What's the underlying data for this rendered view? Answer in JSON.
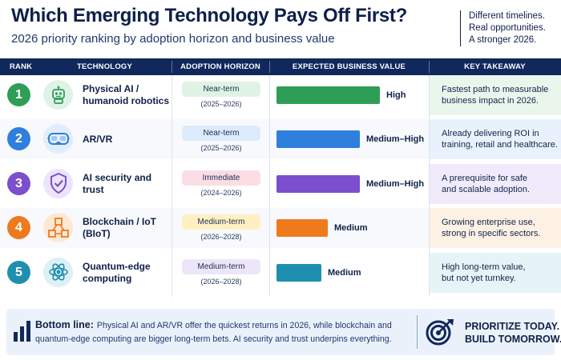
{
  "header": {
    "title": "Which Emerging Technology Pays Off First?",
    "subtitle": "2026 priority ranking by adoption horizon and business value",
    "tagline": [
      "Different timelines.",
      "Real opportunities.",
      "A stronger 2026."
    ]
  },
  "columns": {
    "rank": "RANK",
    "technology": "TECHNOLOGY",
    "horizon": "ADOPTION HORIZON",
    "value": "EXPECTED BUSINESS VALUE",
    "takeaway": "KEY TAKEAWAY"
  },
  "rows": [
    {
      "rank": "1",
      "technology": "Physical AI / humanoid robotics",
      "icon": "robot-icon",
      "horizon": "Near-term",
      "years": "(2025–2026)",
      "value_label": "High",
      "value_level": 0.92,
      "takeaway": "Fastest path to measurable\nbusiness impact in 2026.",
      "color": "#2e9e57",
      "pill_color": "#dff3e4",
      "takeaway_bg": "#eaf6ec",
      "icon_bg": "#e0f2e7"
    },
    {
      "rank": "2",
      "technology": "AR/VR",
      "icon": "vr-headset-icon",
      "horizon": "Near-term",
      "years": "(2025–2026)",
      "value_label": "Medium–High",
      "value_level": 0.74,
      "takeaway": "Already delivering ROI in\ntraining, retail and healthcare.",
      "color": "#2f7fdc",
      "pill_color": "#dcebfb",
      "takeaway_bg": "#e9f2fc",
      "icon_bg": "#e1edfb"
    },
    {
      "rank": "3",
      "technology": "AI security and trust",
      "icon": "shield-check-icon",
      "horizon": "Immediate",
      "years": "(2024–2026)",
      "value_label": "Medium–High",
      "value_level": 0.74,
      "takeaway": "A prerequisite for safe\nand scalable adoption.",
      "color": "#7b4fce",
      "pill_color": "#fbdde3",
      "takeaway_bg": "#f0eafb",
      "icon_bg": "#ece4fa"
    },
    {
      "rank": "4",
      "technology": "Blockchain / IoT (BIoT)",
      "icon": "blockchain-cubes-icon",
      "horizon": "Medium-term",
      "years": "(2026–2028)",
      "value_label": "Medium",
      "value_level": 0.46,
      "takeaway": "Growing enterprise use,\nstrong in specific sectors.",
      "color": "#ee7a1e",
      "pill_color": "#fff0c2",
      "takeaway_bg": "#fdf1e4",
      "icon_bg": "#fde8d4"
    },
    {
      "rank": "5",
      "technology": "Quantum-edge computing",
      "icon": "atom-icon",
      "horizon": "Medium-term",
      "years": "(2026–2028)",
      "value_label": "Medium",
      "value_level": 0.4,
      "takeaway": "High long-term value,\nbut not yet turnkey.",
      "color": "#1f8fb0",
      "pill_color": "#ece6f8",
      "takeaway_bg": "#e6f3f7",
      "icon_bg": "#dcf0f5"
    }
  ],
  "footer": {
    "lead": "Bottom line:",
    "text": "Physical AI and AR/VR offer the quickest returns in 2026, while blockchain and quantum-edge computing are bigger long-term bets. AI security and trust underpins everything.",
    "cta": [
      "PRIORITIZE TODAY.",
      "BUILD TOMORROW."
    ]
  }
}
